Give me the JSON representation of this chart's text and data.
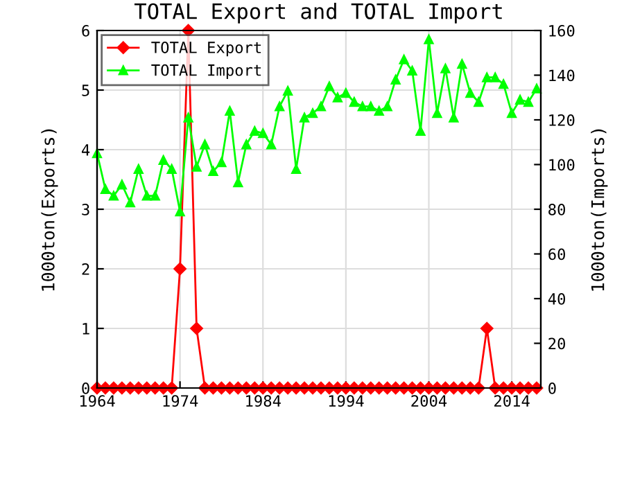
{
  "chart_data": {
    "type": "line",
    "title": "TOTAL Export and TOTAL Import",
    "ylabel": "1000ton(Exports)",
    "y2label": "1000ton(Imports)",
    "x": [
      1964,
      1965,
      1966,
      1967,
      1968,
      1969,
      1970,
      1971,
      1972,
      1973,
      1974,
      1975,
      1976,
      1977,
      1978,
      1979,
      1980,
      1981,
      1982,
      1983,
      1984,
      1985,
      1986,
      1987,
      1988,
      1989,
      1990,
      1991,
      1992,
      1993,
      1994,
      1995,
      1996,
      1997,
      1998,
      1999,
      2000,
      2001,
      2002,
      2003,
      2004,
      2005,
      2006,
      2007,
      2008,
      2009,
      2010,
      2011,
      2012,
      2013,
      2014,
      2015,
      2016,
      2017
    ],
    "series": [
      {
        "name": "TOTAL Export",
        "color": "#ff0000",
        "marker": "diamond",
        "values": [
          0,
          0,
          0,
          0,
          0,
          0,
          0,
          0,
          0,
          0,
          2,
          6,
          1,
          0,
          0,
          0,
          0,
          0,
          0,
          0,
          0,
          0,
          0,
          0,
          0,
          0,
          0,
          0,
          0,
          0,
          0,
          0,
          0,
          0,
          0,
          0,
          0,
          0,
          0,
          0,
          0,
          0,
          0,
          0,
          0,
          0,
          0,
          1,
          0,
          0,
          0,
          0,
          0,
          0
        ]
      },
      {
        "name": "TOTAL Import",
        "color": "#00ff00",
        "marker": "triangle",
        "axis": "y2",
        "values": [
          105,
          89,
          86,
          91,
          83,
          98,
          86,
          86,
          102,
          98,
          79,
          121,
          99,
          109,
          97,
          101,
          124,
          92,
          109,
          115,
          114,
          109,
          126,
          133,
          98,
          121,
          123,
          126,
          135,
          130,
          132,
          128,
          126,
          126,
          124,
          126,
          138,
          147,
          142,
          115,
          156,
          123,
          143,
          121,
          145,
          132,
          128,
          139,
          139,
          136,
          123,
          129,
          128,
          134
        ]
      }
    ],
    "xlim": [
      1964,
      2017.5
    ],
    "xticks": [
      1964,
      1974,
      1984,
      1994,
      2004,
      2014
    ],
    "ylim": [
      0,
      6
    ],
    "yticks": [
      0,
      1,
      2,
      3,
      4,
      5,
      6
    ],
    "y2lim": [
      0,
      160
    ],
    "y2ticks": [
      0,
      20,
      40,
      60,
      80,
      100,
      120,
      140,
      160
    ],
    "grid": true,
    "legend": "top left"
  }
}
